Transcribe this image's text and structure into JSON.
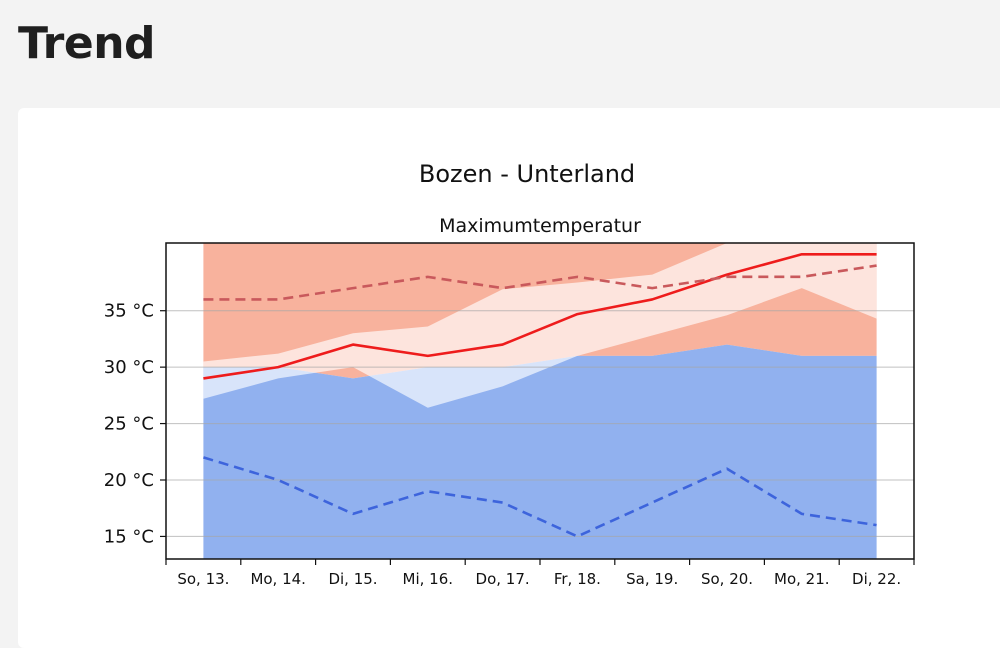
{
  "page": {
    "heading": "Trend"
  },
  "chart_data": {
    "type": "line",
    "title": "Bozen - Unterland",
    "subtitle": "Maximumtemperatur",
    "categories": [
      "So, 13.",
      "Mo, 14.",
      "Di, 15.",
      "Mi, 16.",
      "Do, 17.",
      "Fr, 18.",
      "Sa, 19.",
      "So, 20.",
      "Mo, 21.",
      "Di, 22."
    ],
    "ylim": [
      13,
      41
    ],
    "yticks": [
      15,
      20,
      25,
      30,
      35
    ],
    "ytick_labels": [
      "15 °C",
      "20 °C",
      "25 °C",
      "30 °C",
      "35 °C"
    ],
    "grid": true,
    "series": [
      {
        "style": "solid",
        "color": "#ee1c1c",
        "values": [
          29,
          30,
          32,
          31,
          32,
          34.7,
          36,
          38.2,
          40,
          40
        ]
      },
      {
        "style": "dashed",
        "color": "#c9595c",
        "values": [
          36,
          36,
          37,
          38,
          37,
          38,
          37,
          38,
          38,
          39
        ]
      },
      {
        "style": "dashed",
        "color": "#3d64dc",
        "values": [
          22,
          20,
          17,
          19,
          18,
          15,
          18,
          21,
          17,
          16
        ]
      }
    ],
    "bands": [
      {
        "color": "#f7a58c",
        "lower": [
          30,
          30,
          29,
          30,
          30,
          31,
          31,
          32,
          31,
          31
        ],
        "upper": [
          41,
          41,
          41,
          41,
          41,
          41,
          41,
          41,
          41,
          41
        ]
      },
      {
        "color": "#7ea3ec",
        "lower": [
          13,
          13,
          13,
          13,
          13,
          13,
          13,
          13,
          13,
          13
        ],
        "upper": [
          30,
          30,
          29,
          30,
          30,
          31,
          31,
          32,
          31,
          31
        ]
      },
      {
        "color": "#ffffff",
        "lower": [
          27.2,
          29.0,
          30.0,
          26.4,
          28.3,
          31,
          32.8,
          34.6,
          37,
          34.3
        ],
        "upper": [
          30.5,
          31.2,
          33,
          33.6,
          36.9,
          37.5,
          38.2,
          41,
          41,
          41
        ]
      }
    ]
  }
}
